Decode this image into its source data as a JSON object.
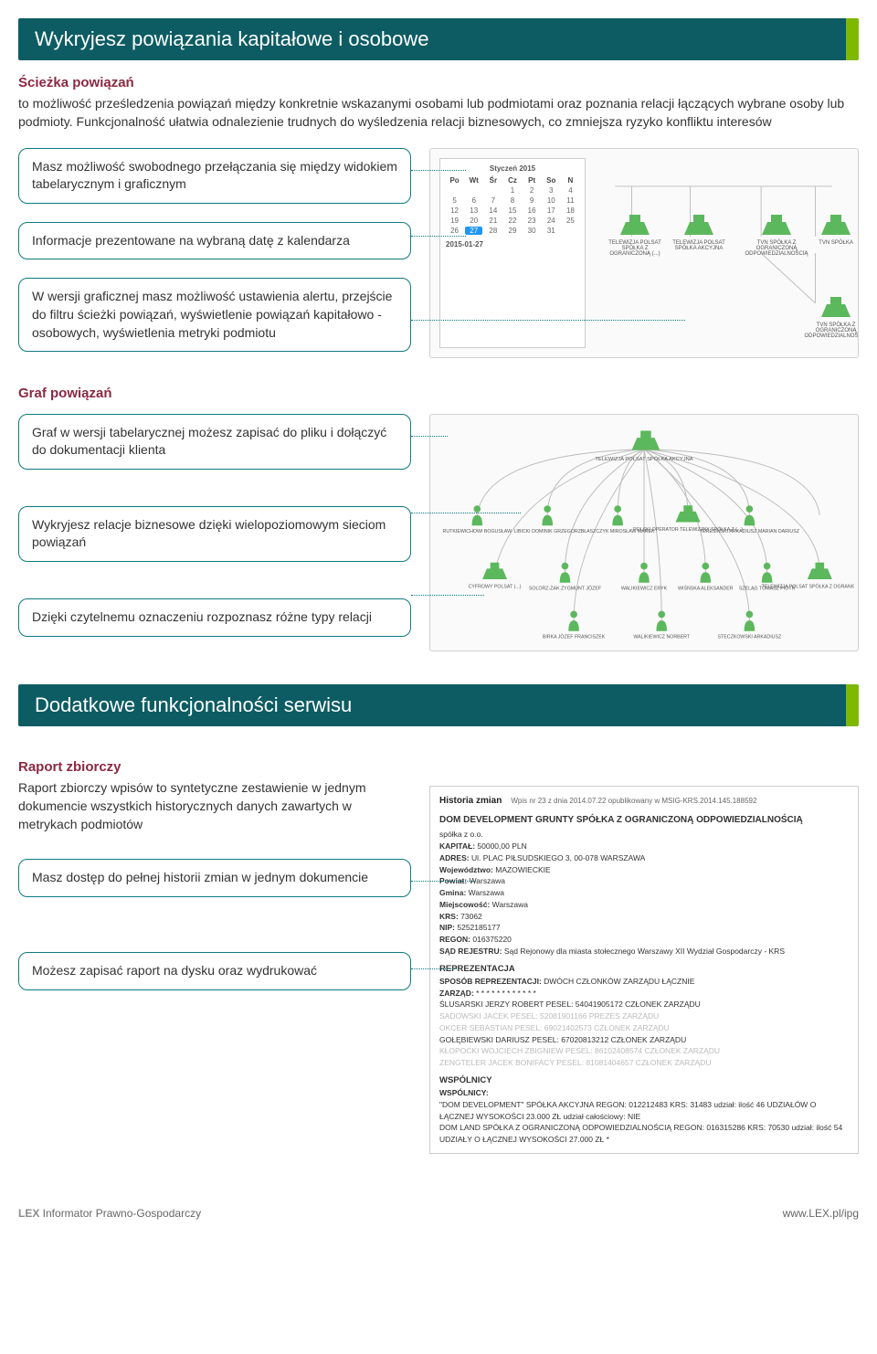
{
  "colors": {
    "header_bg": "#0d5c63",
    "accent": "#7fb800",
    "maroon": "#8b2942",
    "callout_border": "#0d7a7f",
    "node_green": "#5cb85c",
    "text": "#333333",
    "faded_text": "#bbbbbb",
    "panel_border": "#d0d0d0"
  },
  "section1": {
    "title": "Wykryjesz powiązania kapitałowe i osobowe",
    "sub_heading": "Ścieżka powiązań",
    "intro": "to możliwość prześledzenia powiązań między konkretnie wskazanymi osobami lub podmiotami oraz poznania relacji łączących wybrane osoby lub podmioty. Funkcjonalność ułatwia odnalezienie trudnych do wyśledzenia relacji biznesowych, co zmniejsza ryzyko konfliktu interesów",
    "callouts": [
      "Masz możliwość swobodnego przełączania się między widokiem tabelarycznym i graficznym",
      "Informacje prezentowane na wybraną datę z kalendarza",
      "W wersji graficznej masz możliwość ustawienia alertu, przejście do filtru ścieżki powiązań, wyświetlenie powiązań kapitałowo - osobowych, wyświetlenia metryki podmiotu"
    ],
    "calendar": {
      "title": "Styczeń 2015",
      "weekdays": [
        "Po",
        "Wt",
        "Śr",
        "Cz",
        "Pt",
        "So",
        "N"
      ],
      "days": [
        "",
        "",
        "",
        "1",
        "2",
        "3",
        "4",
        "5",
        "6",
        "7",
        "8",
        "9",
        "10",
        "11",
        "12",
        "13",
        "14",
        "15",
        "16",
        "17",
        "18",
        "19",
        "20",
        "21",
        "22",
        "23",
        "24",
        "25",
        "26",
        "27",
        "28",
        "29",
        "30",
        "31",
        ""
      ],
      "selected_day": "27",
      "date_below": "2015-01-27"
    },
    "graph_nodes": [
      "TELEWIZJA POLSAT SPÓŁKA Z OGRANICZONĄ (...)",
      "TELEWIZJA POLSAT SPÓŁKA AKCYJNA",
      "TVN SPÓŁKA Z OGRANICZONĄ ODPOWIEDZIALNOŚCIĄ",
      "TVN SPÓŁKA",
      "TVN SPÓŁKA Z OGRANICZONĄ ODPOWIEDZIALNOŚCIĄ"
    ]
  },
  "section_graf": {
    "heading": "Graf powiązań",
    "callouts": [
      "Graf w wersji tabelarycznej możesz zapisać do pliku i dołączyć do dokumentacji klienta",
      "Wykryjesz relacje biznesowe dzięki wielopoziomowym sieciom powiązań",
      "Dzięki czytelnemu oznaczeniu rozpoznasz różne typy relacji"
    ],
    "graph_labels": {
      "center": "TELEWIZJA POLSAT SPÓŁKA AKCYJNA",
      "row2": [
        "RUTKIEWICHOWI BOGUSŁAW",
        "LIBICKI DOMINIK GRZEGORZ",
        "BŁASZCZYK MIROSŁAW MAREK",
        "POLSKI OPERATOR TELEWIZJNY SPÓŁKA Z (...)",
        "TERESIŃSKI ARKADIUSZ MARIAN DARIUSZ"
      ],
      "row3": [
        "CYFROWY POLSAT (...)",
        "SOLORZ-ŻAK ZYGMUNT JÓZEF",
        "WALIKIEWICZ ERYK",
        "WIŚŃSKA ALEKSANDER",
        "SZELĄG TOMASZ PIOTR",
        "TELEWIZJA POLSAT SPÓŁKA Z OGRANICZONĄ (...)"
      ],
      "row4": [
        "BIRKA JÓZEF FRANCISZEK",
        "WALIKIEWICZ NORBERT",
        "STECZKOWSKI ARKADIUSZ"
      ]
    }
  },
  "section2": {
    "title": "Dodatkowe funkcjonalności serwisu",
    "sub_heading": "Raport zbiorczy",
    "intro": "Raport zbiorczy wpisów to syntetyczne zestawienie w jednym dokumencie wszystkich historycznych danych zawartych w metrykach podmiotów",
    "callouts": [
      "Masz dostęp do pełnej historii zmian w jednym dokumencie",
      "Możesz zapisać raport na dysku oraz wydrukować"
    ],
    "history": {
      "header_left": "Historia zmian",
      "header_right": "Wpis nr 23 z dnia 2014.07.22 opublikowany w MSIG-KRS.2014.145.188592",
      "entity": "DOM DEVELOPMENT GRUNTY SPÓŁKA Z OGRANICZONĄ ODPOWIEDZIALNOŚCIĄ",
      "entity_sub": "spółka z o.o.",
      "fields": [
        {
          "k": "KAPITAŁ:",
          "v": "50000,00 PLN"
        },
        {
          "k": "ADRES:",
          "v": "Ul. PLAC PIŁSUDSKIEGO 3, 00-078 WARSZAWA"
        },
        {
          "k": "Województwo:",
          "v": "MAZOWIECKIE"
        },
        {
          "k": "Powiat:",
          "v": "Warszawa"
        },
        {
          "k": "Gmina:",
          "v": "Warszawa"
        },
        {
          "k": "Miejscowość:",
          "v": "Warszawa"
        },
        {
          "k": "KRS:",
          "v": "73062"
        },
        {
          "k": "NIP:",
          "v": "5252185177"
        },
        {
          "k": "REGON:",
          "v": "016375220"
        },
        {
          "k": "SĄD REJESTRU:",
          "v": "Sąd Rejonowy dla miasta stołecznego Warszawy XII Wydział Gospodarczy - KRS"
        }
      ],
      "rep_heading": "REPREZENTACJA",
      "rep_lines": [
        {
          "k": "SPOSÓB REPREZENTACJI:",
          "v": "DWÓCH CZŁONKÓW ZARZĄDU ŁĄCZNIE"
        },
        {
          "k": "ZARZĄD:",
          "v": "* * * * * * * * * * * *"
        }
      ],
      "rep_people": [
        {
          "txt": "ŚLUSARSKI JERZY ROBERT PESEL: 54041905172 CZŁONEK ZARZĄDU",
          "faded": false
        },
        {
          "txt": "SADOWSKI JACEK PESEL: 52081901166 PREZES ZARZĄDU",
          "faded": true
        },
        {
          "txt": "OKCER SEBASTIAN PESEL: 69021402573 CZŁONEK ZARZĄDU",
          "faded": true
        },
        {
          "txt": "GOŁĘBIEWSKI DARIUSZ PESEL: 67020813212 CZŁONEK ZARZĄDU",
          "faded": false
        },
        {
          "txt": "KŁOPOCKI WOJCIECH ZBIGNIEW PESEL: 86102408574 CZŁONEK ZARZĄDU",
          "faded": true
        },
        {
          "txt": "ZENGTELER JACEK BONIFACY PESEL: 81081404657 CZŁONEK ZARZĄDU",
          "faded": true
        }
      ],
      "wsp_heading": "WSPÓLNICY",
      "wsp_sub": "WSPÓLNICY:",
      "wsp_lines": [
        "\"DOM DEVELOPMENT\" SPÓŁKA AKCYJNA REGON: 012212483 KRS: 31483 udział: ilość 46 UDZIAŁÓW O ŁĄCZNEJ WYSOKOŚCI 23.000 ZŁ udział całościowy: NIE",
        "DOM LAND SPÓŁKA Z OGRANICZONĄ ODPOWIEDZIALNOŚCIĄ REGON: 016315286 KRS: 70530 udział: ilość 54 UDZIAŁY O ŁĄCZNEJ WYSOKOŚCI 27.000 ZŁ *"
      ]
    }
  },
  "footer": {
    "left_prefix": "LEX ",
    "left_rest": "Informator Prawno-Gospodarczy",
    "right": "www.LEX.pl/ipg"
  }
}
